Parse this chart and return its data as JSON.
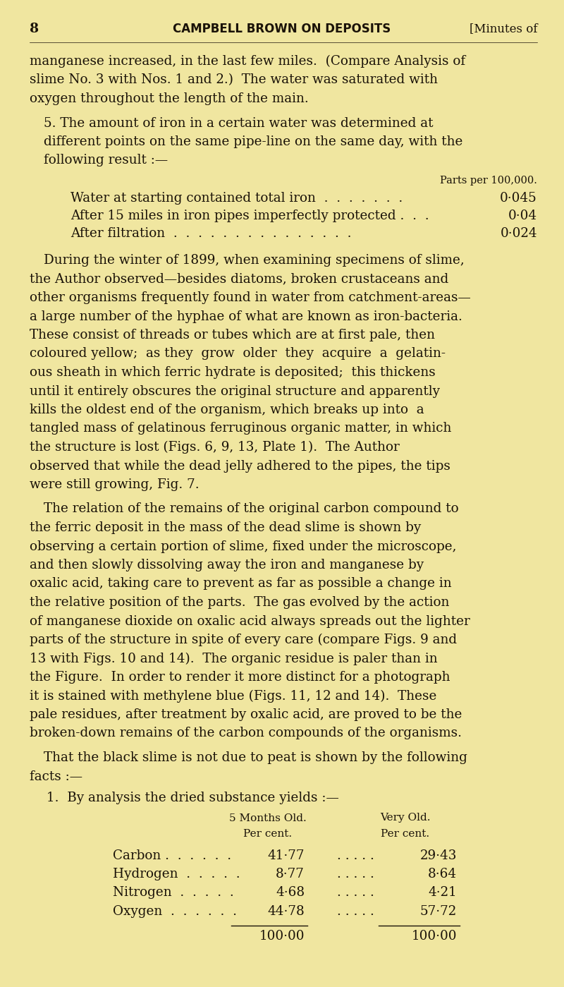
{
  "background_color": "#f0e6a0",
  "text_color": "#1a1208",
  "page_number": "8",
  "header_center": "CAMPBELL BROWN ON DEPOSITS",
  "header_right": "[Minutes of",
  "para1": "manganese increased, in the last few miles.  (Compare Analysis of slime No. 3 with Nos. 1 and 2.)  The water was saturated with oxygen throughout the length of the main.",
  "para2_line1": "5. The amount of iron in a certain water was determined at",
  "para2_line2": "different points on the same pipe-line on the same day, with the",
  "para2_line3": "following result :—",
  "parts_header": "Parts per 100,000.",
  "table_rows": [
    {
      "label": "Water at starting contained total iron  .  .  .  .  .  .  .",
      "value": "0·045"
    },
    {
      "label": "After 15 miles in iron pipes imperfectly protected .  .  .",
      "value": "0·04"
    },
    {
      "label": "After filtration  .  .  .  .  .  .  .  .  .  .  .  .  .  .  .",
      "value": "0·024"
    }
  ],
  "para3_lines": [
    "During the winter of 1899, when examining specimens of slime,",
    "the Author observed—besides diatoms, broken crustaceans and",
    "other organisms frequently found in water from catchment-areas—",
    "a large number of the hyphae of what are known as iron-bacteria.",
    "These consist of threads or tubes which are at first pale, then",
    "coloured yellow;  as they  grow  older  they  acquire  a  gelatin-",
    "ous sheath in which ferric hydrate is deposited;  this thickens",
    "until it entirely obscures the original structure and apparently",
    "kills the oldest end of the organism, which breaks up into  a",
    "tangled mass of gelatinous ferruginous organic matter, in which",
    "the structure is lost (Figs. 6, 9, 13, Plate 1).  The Author",
    "observed that while the dead jelly adhered to the pipes, the tips",
    "were still growing, Fig. 7."
  ],
  "para4_lines": [
    "The relation of the remains of the original carbon compound to",
    "the ferric deposit in the mass of the dead slime is shown by",
    "observing a certain portion of slime, fixed under the microscope,",
    "and then slowly dissolving away the iron and manganese by",
    "oxalic acid, taking care to prevent as far as possible a change in",
    "the relative position of the parts.  The gas evolved by the action",
    "of manganese dioxide on oxalic acid always spreads out the lighter",
    "parts of the structure in spite of every care (compare Figs. 9 and",
    "13 with Figs. 10 and 14).  The organic residue is paler than in",
    "the Figure.  In order to render it more distinct for a photograph",
    "it is stained with methylene blue (Figs. 11, 12 and 14).  These",
    "pale residues, after treatment by oxalic acid, are proved to be the",
    "broken-down remains of the carbon compounds of the organisms."
  ],
  "para5_line1": "That the black slime is not due to peat is shown by the following",
  "para5_line2": "facts :—",
  "para6": "1.  By analysis the dried substance yields :—",
  "analysis_col1_h1": "5 Months Old.",
  "analysis_col1_h2": "Per cent.",
  "analysis_col2_h1": "Very Old.",
  "analysis_col2_h2": "Per cent.",
  "analysis_rows": [
    {
      "label": "Carbon .  .  .  .  .  .",
      "val1": "41·77",
      "val2": "29·43"
    },
    {
      "label": "Hydrogen  .  .  .  .  .",
      "val1": "8·77",
      "val2": "8·64"
    },
    {
      "label": "Nitrogen  .  .  .  .  .",
      "val1": "4·68",
      "val2": "4·21"
    },
    {
      "label": "Oxygen  .  .  .  .  .  .",
      "val1": "44·78",
      "val2": "57·72"
    }
  ],
  "analysis_total1": "100·00",
  "analysis_total2": "100·00"
}
